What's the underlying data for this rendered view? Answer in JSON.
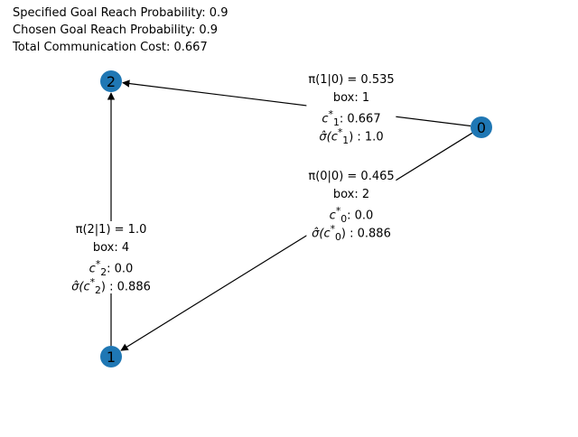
{
  "header": {
    "specified": "Specified Goal Reach Probability: 0.9",
    "chosen": "Chosen Goal Reach Probability: 0.9",
    "cost": "Total Communication Cost: 0.667"
  },
  "colors": {
    "node": "#1f77b4",
    "edge": "#000000"
  },
  "nodes": [
    {
      "id": "2",
      "label": "2"
    },
    {
      "id": "0",
      "label": "0"
    },
    {
      "id": "1",
      "label": "1"
    }
  ],
  "edges": [
    {
      "from": "0",
      "to": "2"
    },
    {
      "from": "0",
      "to": "1"
    },
    {
      "from": "1",
      "to": "2"
    }
  ],
  "labels": {
    "e01": {
      "pi": "π(1|0) = 0.535",
      "box": "box: 1",
      "c_sym": "c",
      "c_sup": "*",
      "c_sub": "1",
      "c_val": ": 0.667",
      "s_sym": "σ̂(c",
      "s_sup": "*",
      "s_sub": "1",
      "s_val": ") : 1.0"
    },
    "e00": {
      "pi": "π(0|0) = 0.465",
      "box": "box: 2",
      "c_sym": "c",
      "c_sup": "*",
      "c_sub": "0",
      "c_val": ": 0.0",
      "s_sym": "σ̂(c",
      "s_sup": "*",
      "s_sub": "0",
      "s_val": ") : 0.886"
    },
    "e21": {
      "pi": "π(2|1) = 1.0",
      "box": "box: 4",
      "c_sym": "c",
      "c_sup": "*",
      "c_sub": "2",
      "c_val": ": 0.0",
      "s_sym": "σ̂(c",
      "s_sup": "*",
      "s_sub": "2",
      "s_val": ") : 0.886"
    }
  }
}
